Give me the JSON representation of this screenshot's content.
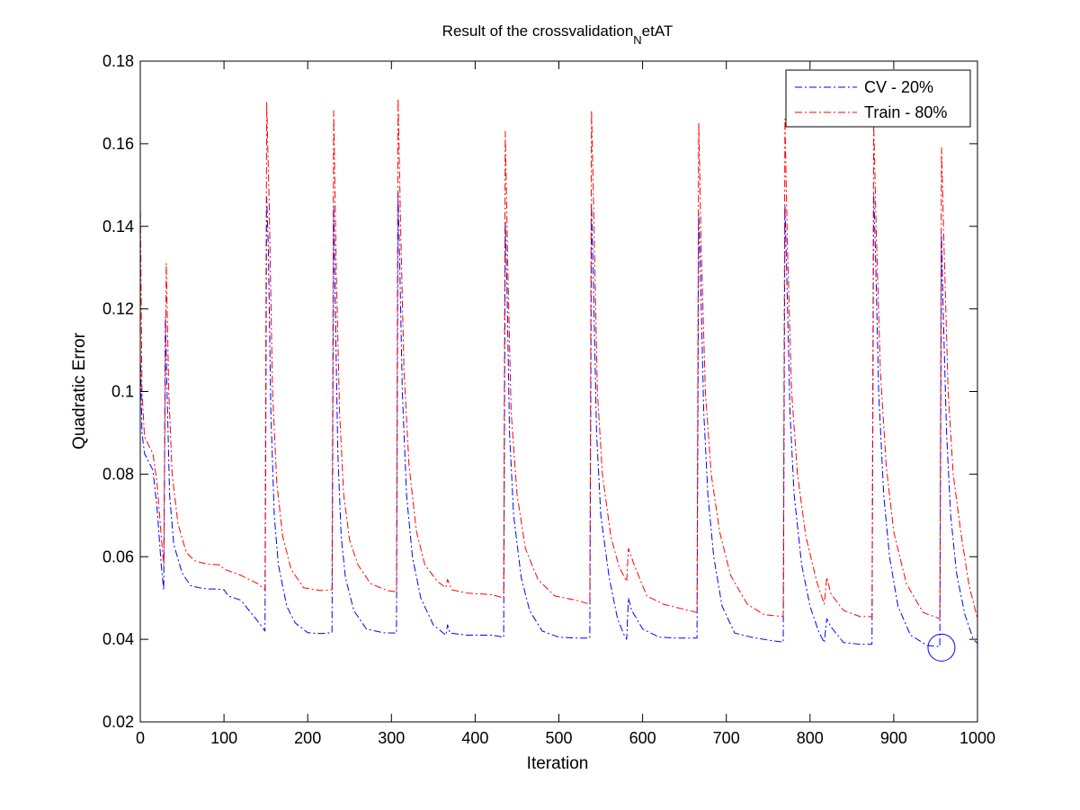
{
  "chart_data": {
    "type": "line",
    "title": {
      "prefix": "Result of the crossvalidation",
      "subscript": "N",
      "suffix": "etAT"
    },
    "xlabel": "Iteration",
    "ylabel": "Quadratic Error",
    "xlim": [
      0,
      1000
    ],
    "ylim": [
      0.02,
      0.18
    ],
    "xticks": [
      0,
      100,
      200,
      300,
      400,
      500,
      600,
      700,
      800,
      900,
      1000
    ],
    "yticks": [
      0.02,
      0.04,
      0.06,
      0.08,
      0.1,
      0.12,
      0.14,
      0.16,
      0.18
    ],
    "xtick_labels": [
      "0",
      "100",
      "200",
      "300",
      "400",
      "500",
      "600",
      "700",
      "800",
      "900",
      "1000"
    ],
    "ytick_labels": [
      "0.02",
      "0.04",
      "0.06",
      "0.08",
      "0.1",
      "0.12",
      "0.14",
      "0.16",
      "0.18"
    ],
    "grid": false,
    "legend_position": "top-right",
    "line_style": "dash-dot",
    "series": [
      {
        "name": "CV - 20%",
        "color": "#0000ff",
        "points": [
          [
            0,
            0.11
          ],
          [
            2,
            0.09
          ],
          [
            5,
            0.085
          ],
          [
            10,
            0.083
          ],
          [
            15,
            0.081
          ],
          [
            20,
            0.072
          ],
          [
            25,
            0.058
          ],
          [
            28,
            0.052
          ],
          [
            30,
            0.118
          ],
          [
            32,
            0.1
          ],
          [
            35,
            0.075
          ],
          [
            40,
            0.063
          ],
          [
            50,
            0.056
          ],
          [
            60,
            0.053
          ],
          [
            70,
            0.0525
          ],
          [
            80,
            0.0522
          ],
          [
            90,
            0.0522
          ],
          [
            100,
            0.052
          ],
          [
            105,
            0.0505
          ],
          [
            120,
            0.0495
          ],
          [
            140,
            0.0445
          ],
          [
            149,
            0.042
          ],
          [
            151,
            0.147
          ],
          [
            153,
            0.135
          ],
          [
            156,
            0.095
          ],
          [
            160,
            0.07
          ],
          [
            165,
            0.058
          ],
          [
            175,
            0.048
          ],
          [
            185,
            0.044
          ],
          [
            200,
            0.0416
          ],
          [
            215,
            0.0414
          ],
          [
            229,
            0.0416
          ],
          [
            231,
            0.145
          ],
          [
            233,
            0.12
          ],
          [
            236,
            0.085
          ],
          [
            240,
            0.065
          ],
          [
            245,
            0.055
          ],
          [
            255,
            0.047
          ],
          [
            270,
            0.0425
          ],
          [
            290,
            0.0416
          ],
          [
            306,
            0.0415
          ],
          [
            308,
            0.148
          ],
          [
            310,
            0.13
          ],
          [
            313,
            0.1
          ],
          [
            318,
            0.075
          ],
          [
            325,
            0.06
          ],
          [
            335,
            0.05
          ],
          [
            350,
            0.0435
          ],
          [
            365,
            0.041
          ],
          [
            367,
            0.0435
          ],
          [
            370,
            0.0415
          ],
          [
            390,
            0.041
          ],
          [
            420,
            0.041
          ],
          [
            434,
            0.0405
          ],
          [
            436,
            0.141
          ],
          [
            438,
            0.125
          ],
          [
            441,
            0.09
          ],
          [
            446,
            0.07
          ],
          [
            455,
            0.055
          ],
          [
            465,
            0.047
          ],
          [
            480,
            0.042
          ],
          [
            500,
            0.0405
          ],
          [
            520,
            0.0403
          ],
          [
            537,
            0.0403
          ],
          [
            539,
            0.145
          ],
          [
            541,
            0.128
          ],
          [
            545,
            0.09
          ],
          [
            550,
            0.07
          ],
          [
            560,
            0.055
          ],
          [
            570,
            0.045
          ],
          [
            578,
            0.041
          ],
          [
            581,
            0.04
          ],
          [
            583,
            0.05
          ],
          [
            587,
            0.047
          ],
          [
            600,
            0.0425
          ],
          [
            620,
            0.0405
          ],
          [
            640,
            0.0403
          ],
          [
            665,
            0.0403
          ],
          [
            667,
            0.143
          ],
          [
            669,
            0.13
          ],
          [
            673,
            0.095
          ],
          [
            678,
            0.075
          ],
          [
            685,
            0.06
          ],
          [
            695,
            0.048
          ],
          [
            710,
            0.0415
          ],
          [
            730,
            0.0405
          ],
          [
            750,
            0.0398
          ],
          [
            768,
            0.0393
          ],
          [
            770,
            0.145
          ],
          [
            772,
            0.13
          ],
          [
            776,
            0.095
          ],
          [
            781,
            0.075
          ],
          [
            790,
            0.058
          ],
          [
            800,
            0.048
          ],
          [
            810,
            0.042
          ],
          [
            817,
            0.0392
          ],
          [
            820,
            0.045
          ],
          [
            825,
            0.043
          ],
          [
            840,
            0.0392
          ],
          [
            860,
            0.0388
          ],
          [
            874,
            0.0388
          ],
          [
            876,
            0.148
          ],
          [
            878,
            0.135
          ],
          [
            882,
            0.1
          ],
          [
            888,
            0.075
          ],
          [
            895,
            0.06
          ],
          [
            905,
            0.048
          ],
          [
            920,
            0.041
          ],
          [
            940,
            0.0385
          ],
          [
            955,
            0.0382
          ],
          [
            957,
            0.138
          ],
          [
            959,
            0.12
          ],
          [
            963,
            0.09
          ],
          [
            968,
            0.07
          ],
          [
            975,
            0.056
          ],
          [
            985,
            0.046
          ],
          [
            995,
            0.04
          ],
          [
            1000,
            0.039
          ]
        ]
      },
      {
        "name": "Train - 80%",
        "color": "#ff0000",
        "points": [
          [
            0,
            0.147
          ],
          [
            2,
            0.1
          ],
          [
            5,
            0.089
          ],
          [
            10,
            0.087
          ],
          [
            15,
            0.085
          ],
          [
            20,
            0.078
          ],
          [
            25,
            0.065
          ],
          [
            28,
            0.058
          ],
          [
            31,
            0.131
          ],
          [
            34,
            0.1
          ],
          [
            38,
            0.08
          ],
          [
            45,
            0.068
          ],
          [
            55,
            0.061
          ],
          [
            65,
            0.059
          ],
          [
            80,
            0.0582
          ],
          [
            95,
            0.058
          ],
          [
            100,
            0.057
          ],
          [
            120,
            0.0555
          ],
          [
            140,
            0.0535
          ],
          [
            149,
            0.052
          ],
          [
            151,
            0.17
          ],
          [
            154,
            0.145
          ],
          [
            158,
            0.1
          ],
          [
            163,
            0.078
          ],
          [
            170,
            0.065
          ],
          [
            180,
            0.057
          ],
          [
            195,
            0.0525
          ],
          [
            215,
            0.0518
          ],
          [
            229,
            0.052
          ],
          [
            231,
            0.168
          ],
          [
            234,
            0.13
          ],
          [
            238,
            0.095
          ],
          [
            243,
            0.075
          ],
          [
            250,
            0.064
          ],
          [
            260,
            0.058
          ],
          [
            275,
            0.0535
          ],
          [
            295,
            0.0518
          ],
          [
            306,
            0.0515
          ],
          [
            308,
            0.171
          ],
          [
            311,
            0.14
          ],
          [
            315,
            0.105
          ],
          [
            321,
            0.082
          ],
          [
            330,
            0.066
          ],
          [
            340,
            0.058
          ],
          [
            355,
            0.054
          ],
          [
            365,
            0.0525
          ],
          [
            367,
            0.0545
          ],
          [
            372,
            0.052
          ],
          [
            390,
            0.0512
          ],
          [
            420,
            0.0508
          ],
          [
            434,
            0.05
          ],
          [
            436,
            0.163
          ],
          [
            439,
            0.13
          ],
          [
            443,
            0.095
          ],
          [
            450,
            0.075
          ],
          [
            460,
            0.062
          ],
          [
            475,
            0.0545
          ],
          [
            495,
            0.0505
          ],
          [
            520,
            0.0495
          ],
          [
            537,
            0.0485
          ],
          [
            539,
            0.168
          ],
          [
            542,
            0.14
          ],
          [
            546,
            0.1
          ],
          [
            552,
            0.08
          ],
          [
            562,
            0.065
          ],
          [
            572,
            0.0575
          ],
          [
            581,
            0.054
          ],
          [
            583,
            0.062
          ],
          [
            590,
            0.058
          ],
          [
            605,
            0.0505
          ],
          [
            625,
            0.0485
          ],
          [
            645,
            0.0475
          ],
          [
            665,
            0.0465
          ],
          [
            667,
            0.165
          ],
          [
            670,
            0.135
          ],
          [
            675,
            0.1
          ],
          [
            682,
            0.08
          ],
          [
            692,
            0.066
          ],
          [
            705,
            0.0555
          ],
          [
            725,
            0.0485
          ],
          [
            745,
            0.046
          ],
          [
            768,
            0.0455
          ],
          [
            770,
            0.166
          ],
          [
            773,
            0.135
          ],
          [
            778,
            0.1
          ],
          [
            785,
            0.08
          ],
          [
            795,
            0.065
          ],
          [
            808,
            0.054
          ],
          [
            817,
            0.0485
          ],
          [
            820,
            0.055
          ],
          [
            825,
            0.051
          ],
          [
            840,
            0.047
          ],
          [
            860,
            0.0455
          ],
          [
            874,
            0.0455
          ],
          [
            876,
            0.165
          ],
          [
            879,
            0.14
          ],
          [
            884,
            0.105
          ],
          [
            891,
            0.082
          ],
          [
            900,
            0.066
          ],
          [
            915,
            0.0535
          ],
          [
            935,
            0.0465
          ],
          [
            955,
            0.045
          ],
          [
            957,
            0.159
          ],
          [
            960,
            0.135
          ],
          [
            965,
            0.1
          ],
          [
            971,
            0.08
          ],
          [
            980,
            0.066
          ],
          [
            990,
            0.053
          ],
          [
            1000,
            0.045
          ]
        ]
      }
    ],
    "marker": {
      "shape": "circle",
      "color": "#0000ff",
      "x": 957,
      "y": 0.038
    }
  }
}
